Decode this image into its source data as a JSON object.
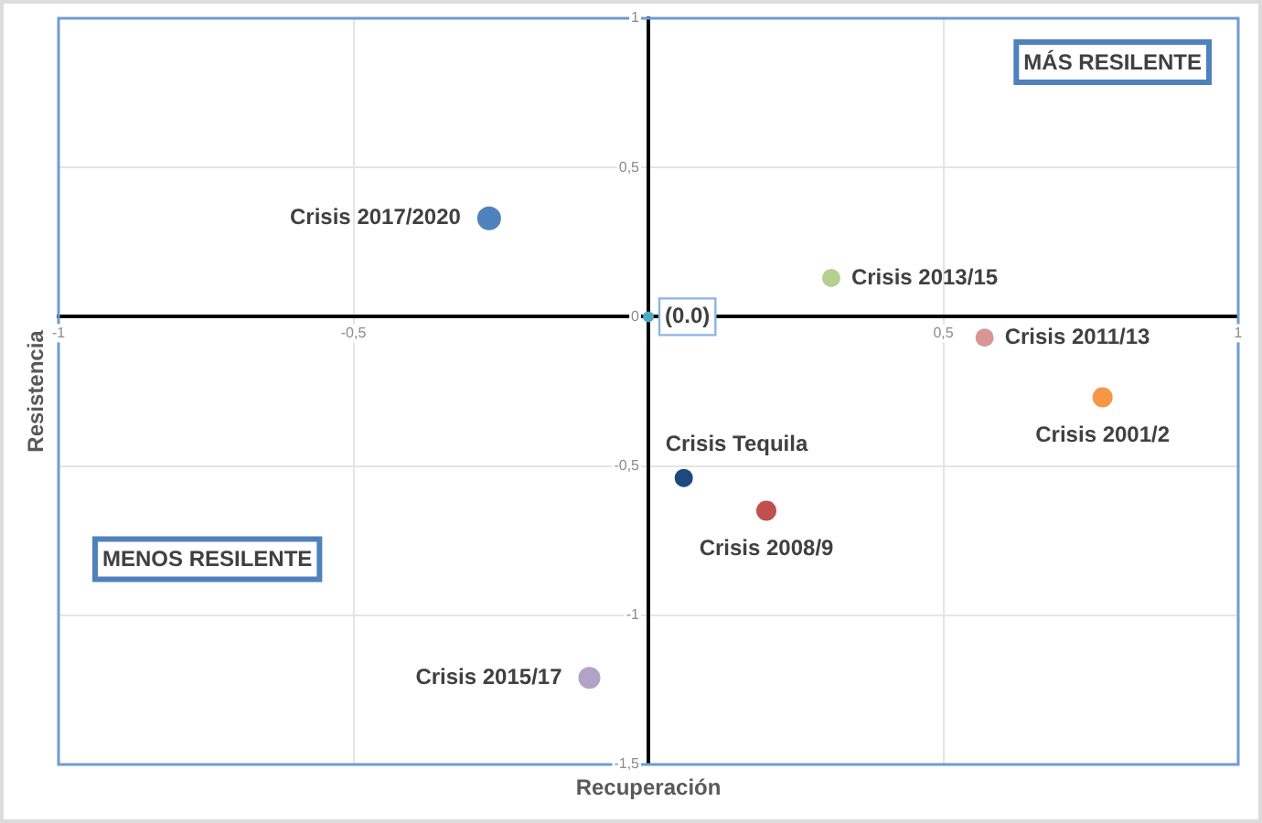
{
  "chart_data": {
    "type": "scatter",
    "xlabel": "Recuperación",
    "ylabel": "Resistencia",
    "xlim": [
      -1,
      1
    ],
    "ylim": [
      -1.5,
      1
    ],
    "xticks": [
      -1,
      {
        "value": -0.5,
        "label": "-0,5"
      },
      {
        "value": 0,
        "label": null
      },
      {
        "value": 0.5,
        "label": "0,5"
      },
      1
    ],
    "yticks": [
      {
        "value": -1.5,
        "label": "-1,5"
      },
      -1,
      {
        "value": -0.5,
        "label": "-0,5"
      },
      0,
      {
        "value": 0.5,
        "label": "0,5"
      },
      1
    ],
    "grid": true,
    "marker": "circle",
    "annotations": [
      "MÁS RESILENTE",
      "MENOS RESILENTE"
    ],
    "series": [
      {
        "name": "Crisis Tequila",
        "color": "#1f497d",
        "x": [
          0.06
        ],
        "values": [
          -0.54
        ]
      },
      {
        "name": "Crisis 2001/2",
        "color": "#f79646",
        "x": [
          0.77
        ],
        "values": [
          -0.27
        ]
      },
      {
        "name": "Crisis 2008/9",
        "color": "#c0504d",
        "x": [
          0.2
        ],
        "values": [
          -0.65
        ]
      },
      {
        "name": "Crisis 2011/13",
        "color": "#d99694",
        "x": [
          0.57
        ],
        "values": [
          -0.07
        ]
      },
      {
        "name": "Crisis 2013/15",
        "color": "#b5cf8f",
        "x": [
          0.31
        ],
        "values": [
          0.13
        ]
      },
      {
        "name": "Crisis 2015/17",
        "color": "#b3a2c7",
        "x": [
          -0.1
        ],
        "values": [
          -1.21
        ]
      },
      {
        "name": "Crisis 2017/2020",
        "color": "#4f81bd",
        "x": [
          -0.27
        ],
        "values": [
          0.33
        ]
      },
      {
        "name": "(0.0)",
        "color": "#4bacc6",
        "x": [
          0
        ],
        "values": [
          0
        ]
      }
    ]
  }
}
